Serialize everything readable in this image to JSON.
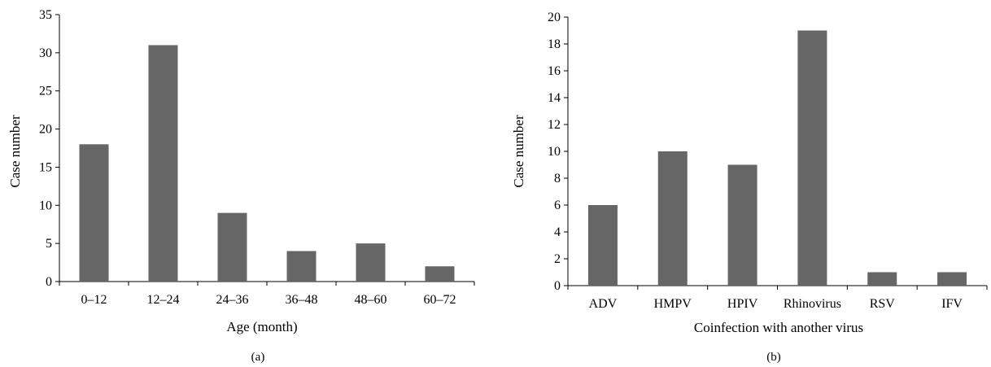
{
  "colors": {
    "bar": "#666666",
    "axis": "#000000"
  },
  "chart_data": [
    {
      "type": "bar",
      "panel_label": "(a)",
      "xlabel": "Age (month)",
      "ylabel": "Case number",
      "categories": [
        "0–12",
        "12–24",
        "24–36",
        "36–48",
        "48–60",
        "60–72"
      ],
      "values": [
        18,
        31,
        9,
        4,
        5,
        2
      ],
      "ylim": [
        0,
        35
      ],
      "yticks": [
        0,
        5,
        10,
        15,
        20,
        25,
        30,
        35
      ],
      "grid": false,
      "legend": false
    },
    {
      "type": "bar",
      "panel_label": "(b)",
      "xlabel": "Coinfection with another virus",
      "ylabel": "Case number",
      "categories": [
        "ADV",
        "HMPV",
        "HPIV",
        "Rhinovirus",
        "RSV",
        "IFV"
      ],
      "values": [
        6,
        10,
        9,
        19,
        1,
        1
      ],
      "ylim": [
        0,
        20
      ],
      "yticks": [
        0,
        2,
        4,
        6,
        8,
        10,
        12,
        14,
        16,
        18,
        20
      ],
      "grid": false,
      "legend": false
    }
  ]
}
